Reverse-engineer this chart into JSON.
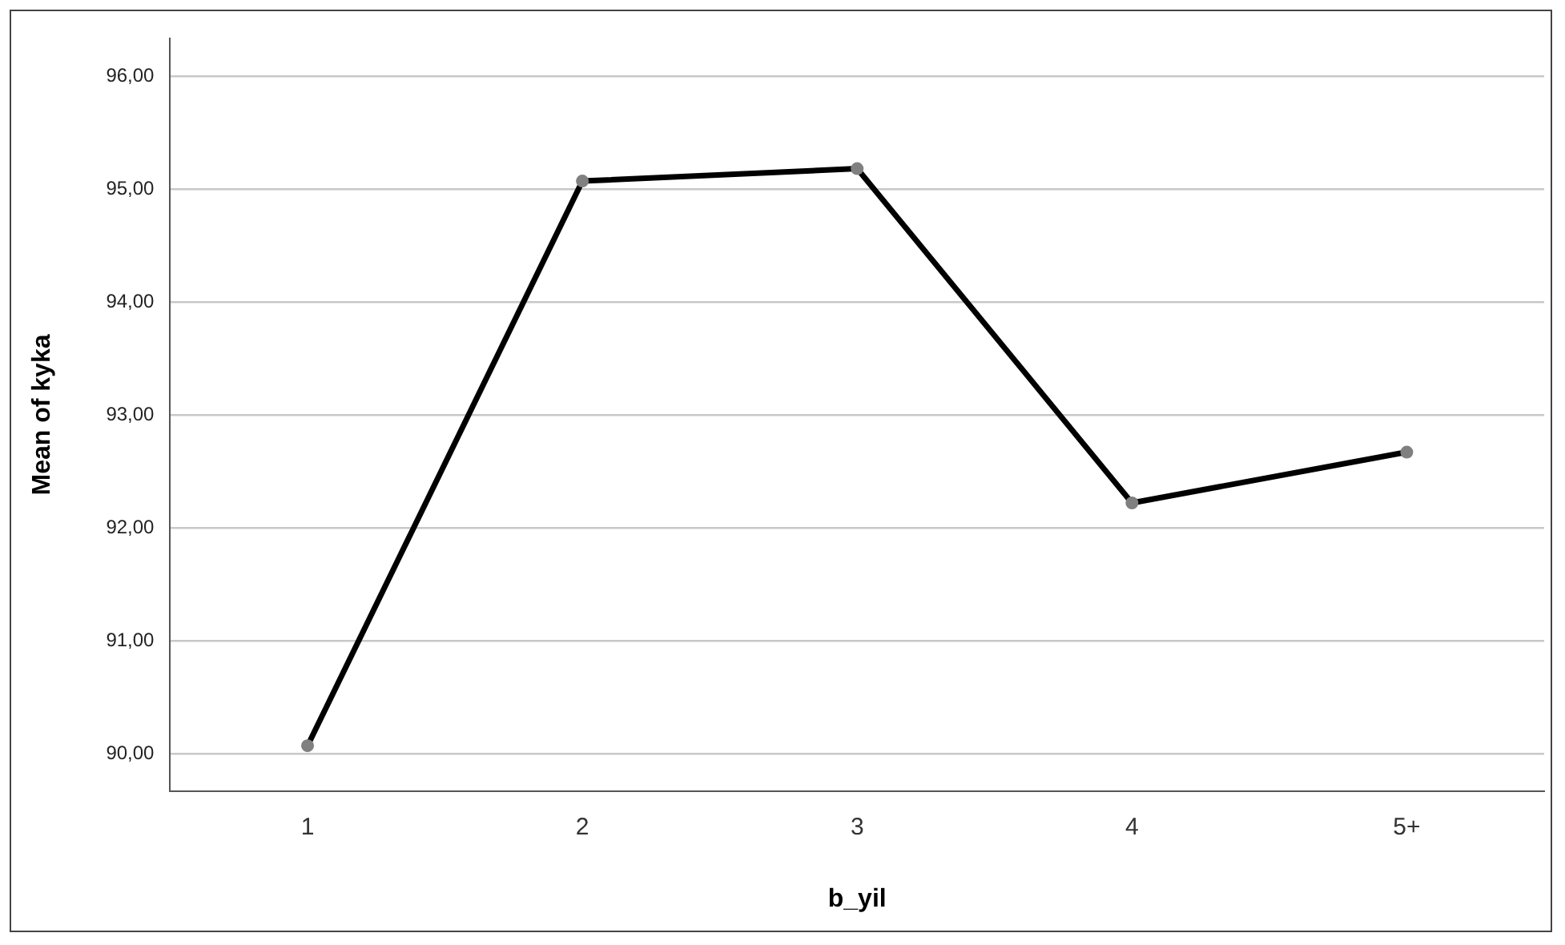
{
  "chart_data": {
    "type": "line",
    "xlabel": "b_yil",
    "ylabel": "Mean of kyka",
    "categories": [
      "1",
      "2",
      "3",
      "4",
      "5+"
    ],
    "series": [
      {
        "color": "#000000",
        "values": [
          90.07,
          95.07,
          95.18,
          92.22,
          92.67
        ]
      }
    ],
    "ylim": [
      89.67,
      96.33
    ],
    "yticks": [
      {
        "value": 90,
        "label": "90,00"
      },
      {
        "value": 91,
        "label": "91,00"
      },
      {
        "value": 92,
        "label": "92,00"
      },
      {
        "value": 93,
        "label": "93,00"
      },
      {
        "value": 94,
        "label": "94,00"
      },
      {
        "value": 95,
        "label": "95,00"
      },
      {
        "value": 96,
        "label": "96,00"
      }
    ],
    "grid": "y",
    "marker": "circle",
    "line_style": "solid",
    "legend": false
  }
}
